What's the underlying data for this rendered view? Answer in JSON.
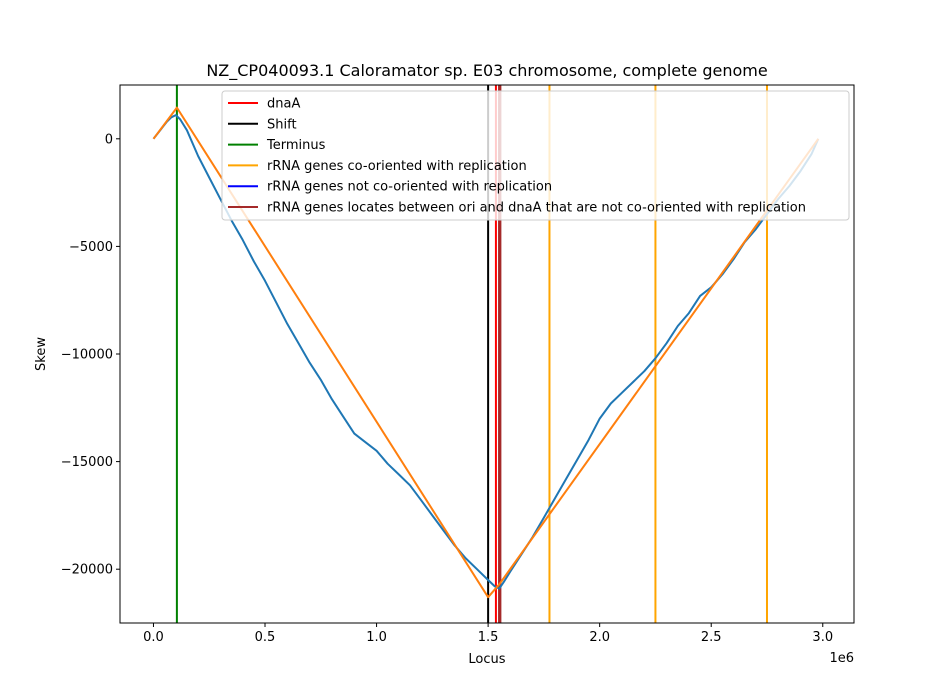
{
  "chart_data": {
    "type": "line",
    "title": "NZ_CP040093.1 Caloramator sp. E03 chromosome, complete genome",
    "xlabel": "Locus",
    "ylabel": "Skew",
    "x_offset_label": "1e6",
    "x_scale_factor": 1000000,
    "xlim": [
      -150000,
      3140000
    ],
    "ylim": [
      -22500,
      2500
    ],
    "x_ticks": [
      0,
      500000,
      1000000,
      1500000,
      2000000,
      2500000,
      3000000
    ],
    "x_tick_labels": [
      "0.0",
      "0.5",
      "1.0",
      "1.5",
      "2.0",
      "2.5",
      "3.0"
    ],
    "y_ticks": [
      0,
      -5000,
      -10000,
      -15000,
      -20000
    ],
    "y_tick_labels": [
      "0",
      "−5000",
      "−10000",
      "−15000",
      "−20000"
    ],
    "grid": false,
    "legend_placement": "top-right",
    "legend": [
      {
        "label": "dnaA",
        "color": "#ff0000"
      },
      {
        "label": "Shift",
        "color": "#000000"
      },
      {
        "label": "Terminus",
        "color": "#008000"
      },
      {
        "label": "rRNA genes co-oriented with replication",
        "color": "#ffa500"
      },
      {
        "label": "rRNA genes not co-oriented with replication",
        "color": "#0000ff"
      },
      {
        "label": "rRNA genes locates between ori and dnaA that are not co-oriented with replication",
        "color": "#a52a2a"
      }
    ],
    "series": [
      {
        "color": "#1f77b4",
        "x": [
          0,
          30000,
          60000,
          80000,
          100000,
          120000,
          150000,
          200000,
          250000,
          300000,
          350000,
          400000,
          450000,
          500000,
          550000,
          600000,
          650000,
          700000,
          750000,
          800000,
          850000,
          900000,
          950000,
          1000000,
          1050000,
          1100000,
          1150000,
          1200000,
          1250000,
          1300000,
          1350000,
          1400000,
          1450000,
          1500000,
          1530000,
          1550000,
          1570000,
          1600000,
          1650000,
          1700000,
          1750000,
          1800000,
          1850000,
          1900000,
          1950000,
          2000000,
          2050000,
          2100000,
          2150000,
          2200000,
          2250000,
          2300000,
          2350000,
          2400000,
          2450000,
          2500000,
          2550000,
          2600000,
          2650000,
          2700000,
          2750000,
          2800000,
          2850000,
          2900000,
          2950000,
          2980000
        ],
        "y": [
          0,
          400,
          800,
          1000,
          1100,
          900,
          400,
          -800,
          -1800,
          -2800,
          -3800,
          -4700,
          -5700,
          -6600,
          -7600,
          -8600,
          -9500,
          -10400,
          -11200,
          -12100,
          -12900,
          -13700,
          -14100,
          -14500,
          -15100,
          -15600,
          -16100,
          -16800,
          -17500,
          -18200,
          -18900,
          -19500,
          -20000,
          -20500,
          -20800,
          -20900,
          -20600,
          -20100,
          -19300,
          -18500,
          -17600,
          -16700,
          -15800,
          -14900,
          -14000,
          -13000,
          -12300,
          -11800,
          -11300,
          -10800,
          -10200,
          -9500,
          -8700,
          -8100,
          -7300,
          -6900,
          -6300,
          -5600,
          -4800,
          -4200,
          -3500,
          -2800,
          -2200,
          -1500,
          -700,
          0
        ]
      },
      {
        "color": "#ff7f0e",
        "x": [
          0,
          105000,
          1500000,
          1550000,
          2980000
        ],
        "y": [
          0,
          1450,
          -21300,
          -20700,
          0
        ]
      }
    ],
    "vertical_lines": [
      {
        "x": 105000,
        "color": "#008000"
      },
      {
        "x": 1500000,
        "color": "#000000"
      },
      {
        "x": 1535000,
        "color": "#ff0000"
      },
      {
        "x": 1549000,
        "color": "#a52a2a"
      },
      {
        "x": 1555000,
        "color": "#a52a2a"
      },
      {
        "x": 1775000,
        "color": "#ffa500"
      },
      {
        "x": 2250000,
        "color": "#ffa500"
      },
      {
        "x": 2750000,
        "color": "#ffa500"
      }
    ]
  }
}
